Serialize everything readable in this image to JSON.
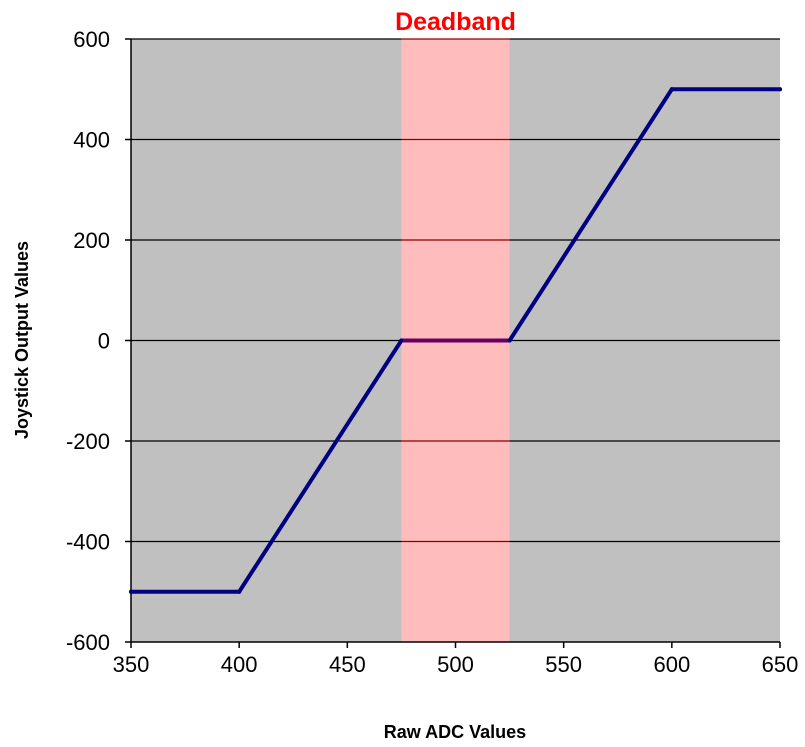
{
  "chart_data": {
    "type": "line",
    "xlabel": "Raw ADC Values",
    "ylabel": "Joystick Output Values",
    "xlim": [
      350,
      650
    ],
    "ylim": [
      -600,
      600
    ],
    "x_ticks": [
      "350",
      "400",
      "450",
      "500",
      "550",
      "600",
      "650"
    ],
    "y_ticks": [
      "600",
      "400",
      "200",
      "0",
      "-200",
      "-400",
      "-600"
    ],
    "grid": "horizontal",
    "legend": "none",
    "series": [
      {
        "points": [
          {
            "x": 350,
            "y": -500
          },
          {
            "x": 400,
            "y": -500
          },
          {
            "x": 475,
            "y": 0
          },
          {
            "x": 525,
            "y": 0
          },
          {
            "x": 600,
            "y": 500
          },
          {
            "x": 650,
            "y": 500
          }
        ]
      }
    ],
    "annotations": [
      {
        "label": "Deadband",
        "x_range": [
          475,
          525
        ]
      }
    ],
    "colors": {
      "plot_background": "#c0c0c0",
      "deadband_fill": "#ffbcbc",
      "deadband_label": "#ff0000",
      "line": "#000080",
      "deadband_line": "#660066",
      "gridline": "#000000",
      "deadband_gridline": "#8b0000"
    }
  }
}
